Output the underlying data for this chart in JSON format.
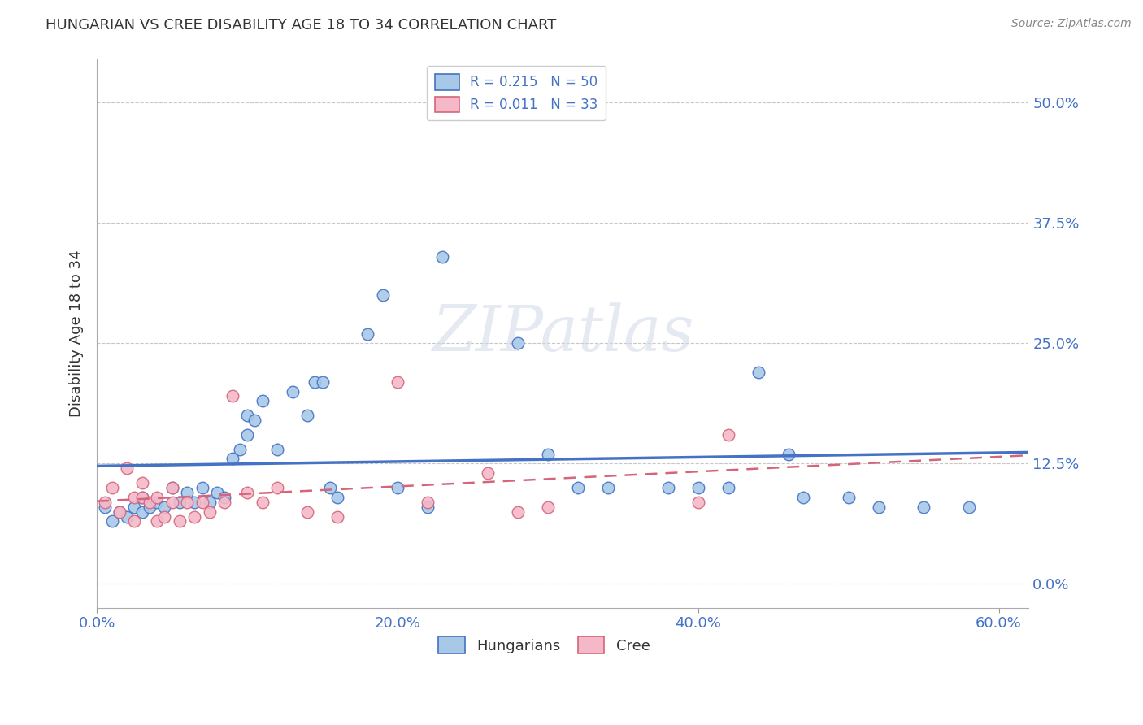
{
  "title": "HUNGARIAN VS CREE DISABILITY AGE 18 TO 34 CORRELATION CHART",
  "source": "Source: ZipAtlas.com",
  "ylabel": "Disability Age 18 to 34",
  "xlabel_ticks": [
    "0.0%",
    "20.0%",
    "40.0%",
    "60.0%"
  ],
  "ylabel_ticks": [
    "0.0%",
    "12.5%",
    "25.0%",
    "37.5%",
    "50.0%"
  ],
  "xlim": [
    0.0,
    0.62
  ],
  "ylim": [
    -0.025,
    0.545
  ],
  "legend_r_hungarian": "R = 0.215",
  "legend_n_hungarian": "N = 50",
  "legend_r_cree": "R = 0.011",
  "legend_n_cree": "N = 33",
  "hungarian_color": "#a8c8e8",
  "cree_color": "#f4b8c8",
  "line_hungarian_color": "#4472c4",
  "line_cree_color": "#d4657a",
  "hungarian_scatter_x": [
    0.005,
    0.01,
    0.015,
    0.02,
    0.025,
    0.03,
    0.03,
    0.035,
    0.04,
    0.045,
    0.05,
    0.055,
    0.06,
    0.065,
    0.07,
    0.075,
    0.08,
    0.085,
    0.09,
    0.095,
    0.1,
    0.105,
    0.11,
    0.13,
    0.14,
    0.145,
    0.15,
    0.155,
    0.18,
    0.19,
    0.22,
    0.23,
    0.28,
    0.3,
    0.32,
    0.34,
    0.38,
    0.4,
    0.42,
    0.44,
    0.46,
    0.47,
    0.5,
    0.52,
    0.55,
    0.58,
    0.1,
    0.12,
    0.16,
    0.2
  ],
  "hungarian_scatter_y": [
    0.08,
    0.065,
    0.075,
    0.07,
    0.08,
    0.075,
    0.09,
    0.08,
    0.085,
    0.08,
    0.1,
    0.085,
    0.095,
    0.085,
    0.1,
    0.085,
    0.095,
    0.09,
    0.13,
    0.14,
    0.175,
    0.17,
    0.19,
    0.2,
    0.175,
    0.21,
    0.21,
    0.1,
    0.26,
    0.3,
    0.08,
    0.34,
    0.25,
    0.135,
    0.1,
    0.1,
    0.1,
    0.1,
    0.1,
    0.22,
    0.135,
    0.09,
    0.09,
    0.08,
    0.08,
    0.08,
    0.155,
    0.14,
    0.09,
    0.1
  ],
  "cree_scatter_x": [
    0.005,
    0.01,
    0.015,
    0.02,
    0.025,
    0.025,
    0.03,
    0.03,
    0.035,
    0.04,
    0.04,
    0.045,
    0.05,
    0.05,
    0.055,
    0.06,
    0.065,
    0.07,
    0.075,
    0.085,
    0.09,
    0.1,
    0.11,
    0.12,
    0.14,
    0.16,
    0.2,
    0.22,
    0.26,
    0.28,
    0.3,
    0.4,
    0.42
  ],
  "cree_scatter_y": [
    0.085,
    0.1,
    0.075,
    0.12,
    0.09,
    0.065,
    0.09,
    0.105,
    0.085,
    0.09,
    0.065,
    0.07,
    0.085,
    0.1,
    0.065,
    0.085,
    0.07,
    0.085,
    0.075,
    0.085,
    0.195,
    0.095,
    0.085,
    0.1,
    0.075,
    0.07,
    0.21,
    0.085,
    0.115,
    0.075,
    0.08,
    0.085,
    0.155
  ],
  "watermark": "ZIPatlas",
  "background_color": "#ffffff",
  "grid_color": "#c8c8c8"
}
